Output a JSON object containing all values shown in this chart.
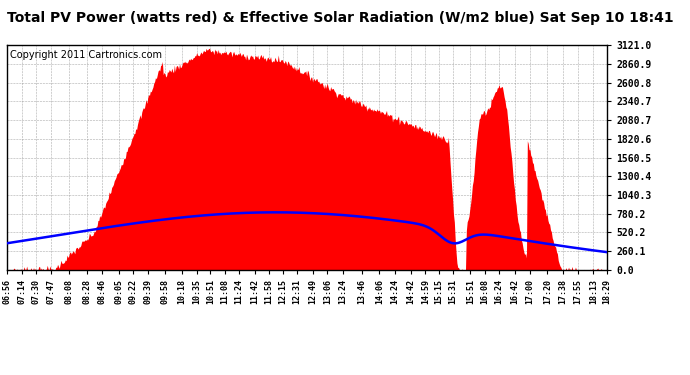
{
  "title": "Total PV Power (watts red) & Effective Solar Radiation (W/m2 blue) Sat Sep 10 18:41",
  "copyright": "Copyright 2011 Cartronics.com",
  "ymax": 3121.0,
  "yticks": [
    0.0,
    260.1,
    520.2,
    780.2,
    1040.3,
    1300.4,
    1560.5,
    1820.6,
    2080.7,
    2340.7,
    2600.8,
    2860.9,
    3121.0
  ],
  "bg_color": "#ffffff",
  "grid_color": "#aaaaaa",
  "fill_color": "#ff0000",
  "line_color": "#0000ff",
  "title_fontsize": 10,
  "copyright_fontsize": 7,
  "xtick_labels": [
    "06:56",
    "07:14",
    "07:30",
    "07:47",
    "08:08",
    "08:28",
    "08:46",
    "09:05",
    "09:22",
    "09:39",
    "09:58",
    "10:18",
    "10:35",
    "10:51",
    "11:08",
    "11:24",
    "11:42",
    "11:58",
    "12:15",
    "12:31",
    "12:49",
    "13:06",
    "13:24",
    "13:46",
    "14:06",
    "14:24",
    "14:42",
    "14:59",
    "15:15",
    "15:31",
    "15:51",
    "16:08",
    "16:24",
    "16:42",
    "17:00",
    "17:20",
    "17:38",
    "17:55",
    "18:13",
    "18:29"
  ]
}
